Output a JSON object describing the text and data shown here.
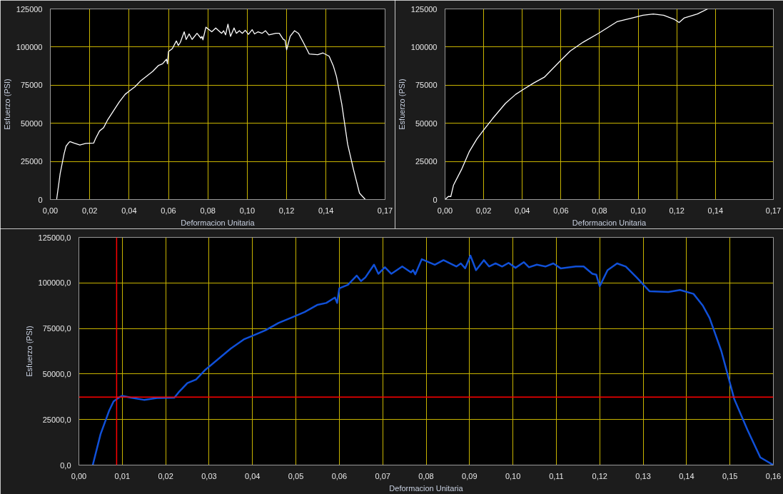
{
  "chart_data": [
    {
      "type": "line",
      "xlabel": "Deformacion Unitaria",
      "ylabel": "Esfuerzo (PSI)",
      "grid": true,
      "marker": "none",
      "line_style": "solid",
      "xlim": [
        0,
        0.17
      ],
      "ylim": [
        0,
        125000
      ],
      "xticks": [
        {
          "value": 0,
          "label": "0,00"
        },
        {
          "value": 0.02,
          "label": "0,02"
        },
        {
          "value": 0.04,
          "label": "0,04"
        },
        {
          "value": 0.06,
          "label": "0,06"
        },
        {
          "value": 0.08,
          "label": "0,08"
        },
        {
          "value": 0.1,
          "label": "0,10"
        },
        {
          "value": 0.12,
          "label": "0,12"
        },
        {
          "value": 0.14,
          "label": "0,14"
        },
        {
          "value": 0.17,
          "label": "0,17"
        }
      ],
      "yticks": [
        0,
        25000,
        50000,
        75000,
        100000,
        125000
      ],
      "x": [
        0.0032,
        0.005,
        0.007,
        0.008,
        0.0095,
        0.01,
        0.012,
        0.015,
        0.018,
        0.022,
        0.023,
        0.025,
        0.027,
        0.029,
        0.032,
        0.035,
        0.038,
        0.04,
        0.043,
        0.046,
        0.049,
        0.052,
        0.055,
        0.057,
        0.059,
        0.0595,
        0.06,
        0.062,
        0.064,
        0.065,
        0.066,
        0.068,
        0.069,
        0.0705,
        0.072,
        0.0745,
        0.0765,
        0.077,
        0.0775,
        0.079,
        0.082,
        0.084,
        0.087,
        0.088,
        0.089,
        0.0902,
        0.0915,
        0.0933,
        0.0945,
        0.096,
        0.0975,
        0.099,
        0.1006,
        0.1025,
        0.1037,
        0.1055,
        0.1075,
        0.1093,
        0.111,
        0.1145,
        0.1163,
        0.1183,
        0.1192,
        0.12,
        0.1218,
        0.124,
        0.126,
        0.1285,
        0.1315,
        0.1358,
        0.1385,
        0.1416,
        0.1437,
        0.1453,
        0.148,
        0.151,
        0.154,
        0.157,
        0.16
      ],
      "series": [
        {
          "color": "#ffffff",
          "values": [
            0,
            17000,
            30000,
            35000,
            37500,
            38000,
            37000,
            35800,
            36800,
            37000,
            40000,
            45000,
            47000,
            52000,
            58000,
            64000,
            69000,
            71000,
            74000,
            78000,
            81000,
            84000,
            88000,
            89000,
            92000,
            89000,
            97000,
            99000,
            104000,
            101000,
            103000,
            110000,
            105000,
            108600,
            105000,
            109000,
            105800,
            107000,
            104700,
            113000,
            110000,
            112500,
            109000,
            110700,
            108000,
            115000,
            107000,
            112500,
            109000,
            110700,
            109000,
            111000,
            108300,
            111400,
            108600,
            110000,
            109000,
            110700,
            108000,
            109000,
            109000,
            105000,
            104500,
            98200,
            107000,
            110700,
            109000,
            103000,
            95400,
            95000,
            96100,
            94000,
            87700,
            80800,
            62700,
            36200,
            19500,
            4200,
            0
          ]
        }
      ]
    },
    {
      "type": "line",
      "xlabel": "Deformacion Unitaria",
      "ylabel": "Esfuerzo (PSI)",
      "grid": true,
      "marker": "none",
      "line_style": "solid",
      "xlim": [
        0,
        0.17
      ],
      "ylim": [
        0,
        125000
      ],
      "xticks": [
        {
          "value": 0,
          "label": "0,00"
        },
        {
          "value": 0.02,
          "label": "0,02"
        },
        {
          "value": 0.04,
          "label": "0,04"
        },
        {
          "value": 0.06,
          "label": "0,06"
        },
        {
          "value": 0.08,
          "label": "0,08"
        },
        {
          "value": 0.1,
          "label": "0,10"
        },
        {
          "value": 0.12,
          "label": "0,12"
        },
        {
          "value": 0.14,
          "label": "0,14"
        },
        {
          "value": 0.17,
          "label": "0,17"
        }
      ],
      "yticks": [
        0,
        25000,
        50000,
        75000,
        100000,
        125000
      ],
      "x": [
        0,
        0.0017,
        0.003,
        0.0044,
        0.0085,
        0.0125,
        0.0165,
        0.0205,
        0.0246,
        0.0313,
        0.0366,
        0.0407,
        0.046,
        0.0514,
        0.0595,
        0.0648,
        0.0715,
        0.0796,
        0.089,
        0.097,
        0.1024,
        0.1078,
        0.1132,
        0.1185,
        0.1212,
        0.1239,
        0.1306,
        0.136
      ],
      "series": [
        {
          "color": "#ffffff",
          "values": [
            0,
            2000,
            2000,
            9500,
            19600,
            31300,
            39700,
            46400,
            53000,
            63100,
            69000,
            72300,
            76500,
            80200,
            90700,
            97400,
            103200,
            109100,
            116600,
            119100,
            120800,
            121700,
            120800,
            118300,
            116100,
            119100,
            121700,
            125000
          ]
        }
      ]
    },
    {
      "type": "line",
      "xlabel": "Deformacion Unitaria",
      "ylabel": "Esfuerzo (PSI)",
      "grid": true,
      "marker": "none",
      "line_style": "solid",
      "xlim": [
        0,
        0.16
      ],
      "ylim": [
        0,
        125000
      ],
      "xticks": [
        {
          "value": 0,
          "label": "0,00"
        },
        {
          "value": 0.01,
          "label": "0,01"
        },
        {
          "value": 0.02,
          "label": "0,02"
        },
        {
          "value": 0.03,
          "label": "0,03"
        },
        {
          "value": 0.04,
          "label": "0,04"
        },
        {
          "value": 0.05,
          "label": "0,05"
        },
        {
          "value": 0.06,
          "label": "0,06"
        },
        {
          "value": 0.07,
          "label": "0,07"
        },
        {
          "value": 0.08,
          "label": "0,08"
        },
        {
          "value": 0.09,
          "label": "0,09"
        },
        {
          "value": 0.1,
          "label": "0,10"
        },
        {
          "value": 0.11,
          "label": "0,11"
        },
        {
          "value": 0.12,
          "label": "0,12"
        },
        {
          "value": 0.13,
          "label": "0,13"
        },
        {
          "value": 0.14,
          "label": "0,14"
        },
        {
          "value": 0.15,
          "label": "0,15"
        },
        {
          "value": 0.16,
          "label": "0,16"
        }
      ],
      "yticks": [
        {
          "value": 0,
          "label": "0,0"
        },
        {
          "value": 25000,
          "label": "25000,0"
        },
        {
          "value": 50000,
          "label": "50000,0"
        },
        {
          "value": 75000,
          "label": "75000,0"
        },
        {
          "value": 100000,
          "label": "100000,0"
        },
        {
          "value": 125000,
          "label": "125000,0"
        }
      ],
      "ref_lines": [
        {
          "axis": "x",
          "value": 0.0087,
          "color": "#ff0000"
        },
        {
          "axis": "y",
          "value": 37300,
          "color": "#ff0000"
        }
      ],
      "x": [
        0.0032,
        0.005,
        0.007,
        0.008,
        0.0095,
        0.01,
        0.012,
        0.015,
        0.018,
        0.022,
        0.023,
        0.025,
        0.027,
        0.029,
        0.032,
        0.035,
        0.038,
        0.04,
        0.043,
        0.046,
        0.049,
        0.052,
        0.055,
        0.057,
        0.059,
        0.0595,
        0.06,
        0.062,
        0.064,
        0.065,
        0.066,
        0.068,
        0.069,
        0.0705,
        0.072,
        0.0745,
        0.0765,
        0.077,
        0.0775,
        0.079,
        0.082,
        0.084,
        0.087,
        0.088,
        0.089,
        0.0902,
        0.0915,
        0.0933,
        0.0945,
        0.096,
        0.0975,
        0.099,
        0.1006,
        0.1025,
        0.1037,
        0.1055,
        0.1075,
        0.1093,
        0.111,
        0.1145,
        0.1163,
        0.1183,
        0.1192,
        0.12,
        0.1218,
        0.124,
        0.126,
        0.1285,
        0.1315,
        0.1358,
        0.1385,
        0.1416,
        0.1437,
        0.1453,
        0.148,
        0.151,
        0.154,
        0.157,
        0.16
      ],
      "series": [
        {
          "color": "#1050d8",
          "values": [
            0,
            17000,
            30000,
            35000,
            37500,
            38000,
            37000,
            35800,
            36800,
            37000,
            40000,
            45000,
            47000,
            52000,
            58000,
            64000,
            69000,
            71000,
            74000,
            78000,
            81000,
            84000,
            88000,
            89000,
            92000,
            89000,
            97000,
            99000,
            104000,
            101000,
            103000,
            110000,
            105000,
            108600,
            105000,
            109000,
            105800,
            107000,
            104700,
            113000,
            110000,
            112500,
            109000,
            110700,
            108000,
            115000,
            107000,
            112500,
            109000,
            110700,
            109000,
            111000,
            108300,
            111400,
            108600,
            110000,
            109000,
            110700,
            108000,
            109000,
            109000,
            105000,
            104500,
            98200,
            107000,
            110700,
            109000,
            103000,
            95400,
            95000,
            96100,
            94000,
            87700,
            80800,
            62700,
            36200,
            19500,
            4200,
            0
          ]
        }
      ]
    }
  ]
}
